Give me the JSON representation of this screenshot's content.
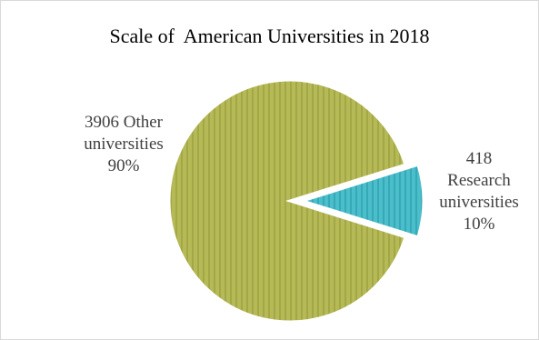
{
  "chart_data": {
    "type": "pie",
    "title": "Scale of  American Universities in 2018",
    "slices": [
      {
        "name": "Other universities",
        "count": 3906,
        "percent": 90,
        "label_lines": [
          "3906 Other",
          "universities",
          "90%"
        ],
        "color": "#b5b956",
        "stripe_color": "#a3a746",
        "exploded": false
      },
      {
        "name": "Research universities",
        "count": 418,
        "percent": 10,
        "label_lines": [
          "418",
          "Research",
          "universities",
          "10%"
        ],
        "color": "#4bbecb",
        "stripe_color": "#37a9b6",
        "exploded": true
      }
    ],
    "legend": "none"
  }
}
